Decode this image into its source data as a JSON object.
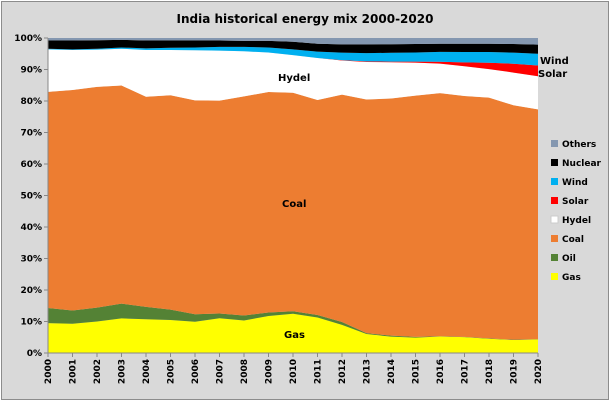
{
  "chart_data": {
    "type": "area",
    "stacked": true,
    "title": "India historical energy mix 2000-2020",
    "xlabel": "",
    "ylabel": "",
    "ylim": [
      0,
      100
    ],
    "y_ticks": [
      "0%",
      "10%",
      "20%",
      "30%",
      "40%",
      "50%",
      "60%",
      "70%",
      "80%",
      "90%",
      "100%"
    ],
    "categories": [
      "2000",
      "2001",
      "2002",
      "2003",
      "2004",
      "2005",
      "2006",
      "2007",
      "2008",
      "2009",
      "2010",
      "2011",
      "2012",
      "2013",
      "2014",
      "2015",
      "2016",
      "2017",
      "2018",
      "2019",
      "2020"
    ],
    "legend_position": "right",
    "grid": false,
    "series": [
      {
        "name": "Gas",
        "color": "#FFFF00",
        "values": [
          9.5,
          9.3,
          10.0,
          11.0,
          10.7,
          10.5,
          9.9,
          11.0,
          10.3,
          11.7,
          12.4,
          11.2,
          8.9,
          6.0,
          5.2,
          4.9,
          5.2,
          5.0,
          4.5,
          4.1,
          4.3
        ]
      },
      {
        "name": "Oil",
        "color": "#548235",
        "values": [
          4.8,
          4.2,
          4.4,
          4.7,
          3.9,
          3.3,
          2.4,
          1.5,
          1.6,
          1.1,
          0.8,
          0.8,
          0.9,
          0.3,
          0.3,
          0.2,
          0.1,
          0.1,
          0.1,
          0.1,
          0.1
        ]
      },
      {
        "name": "Coal",
        "color": "#ED7D31",
        "values": [
          68.6,
          70.0,
          70.1,
          69.3,
          66.5,
          68.1,
          67.8,
          67.3,
          69.4,
          69.8,
          69.0,
          67.9,
          71.8,
          74.0,
          75.3,
          76.6,
          76.8,
          75.9,
          75.9,
          73.9,
          72.7
        ]
      },
      {
        "name": "Hydel",
        "color": "#FFFFFF",
        "values": [
          13.5,
          12.7,
          11.8,
          11.7,
          14.8,
          14.4,
          15.9,
          15.8,
          14.3,
          12.5,
          11.9,
          13.3,
          10.8,
          11.9,
          11.5,
          10.5,
          9.3,
          9.4,
          9.0,
          10.3,
          10.5
        ]
      },
      {
        "name": "Solar",
        "color": "#FF0000",
        "values": [
          0,
          0,
          0,
          0,
          0,
          0,
          0,
          0,
          0,
          0,
          0,
          0,
          0.1,
          0.2,
          0.2,
          0.3,
          0.6,
          1.2,
          2.0,
          2.8,
          3.4
        ]
      },
      {
        "name": "Wind",
        "color": "#00B0F0",
        "values": [
          0.2,
          0.2,
          0.3,
          0.4,
          0.5,
          0.7,
          0.9,
          1.2,
          1.4,
          1.6,
          1.8,
          2.0,
          2.4,
          2.6,
          2.8,
          2.9,
          3.1,
          3.3,
          3.4,
          3.5,
          3.7
        ]
      },
      {
        "name": "Nuclear",
        "color": "#000000",
        "values": [
          2.6,
          2.8,
          2.7,
          2.4,
          2.5,
          2.3,
          2.2,
          2.0,
          1.9,
          2.1,
          2.4,
          2.5,
          2.6,
          2.8,
          2.7,
          2.7,
          2.6,
          2.6,
          2.6,
          2.7,
          2.9
        ]
      },
      {
        "name": "Others",
        "color": "#8497B0",
        "values": [
          0.8,
          0.8,
          0.7,
          0.6,
          0.8,
          0.8,
          0.8,
          0.8,
          0.9,
          0.9,
          1.2,
          1.8,
          2.0,
          2.0,
          2.0,
          1.9,
          1.8,
          1.8,
          1.8,
          1.9,
          2.1
        ]
      }
    ],
    "legend_order": [
      "Others",
      "Nuclear",
      "Wind",
      "Solar",
      "Hydel",
      "Coal",
      "Oil",
      "Gas"
    ],
    "annotations": {
      "hydel": "Hydel",
      "coal": "Coal",
      "gas": "Gas",
      "wind": "Wind",
      "solar": "Solar"
    }
  }
}
